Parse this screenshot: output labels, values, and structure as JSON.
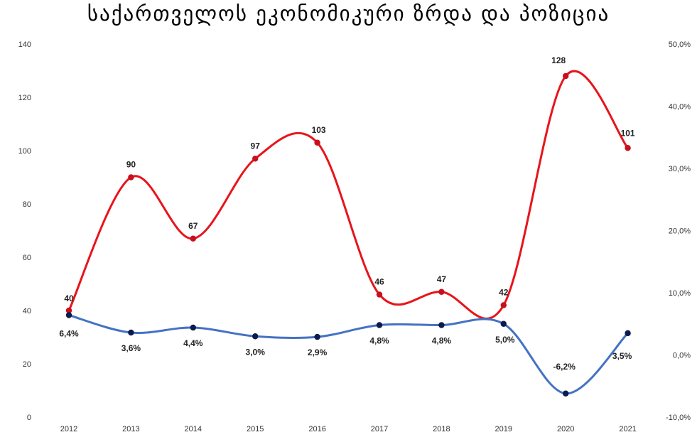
{
  "chart_data": {
    "type": "line",
    "title": "საქართველოს ეკონომიკური ზრდა და პოზიცია",
    "categories": [
      "2012",
      "2013",
      "2014",
      "2015",
      "2016",
      "2017",
      "2018",
      "2019",
      "2020",
      "2021"
    ],
    "y_left": {
      "min": 0,
      "max": 140,
      "ticks": [
        0,
        20,
        40,
        60,
        80,
        100,
        120,
        140
      ],
      "tick_labels": [
        "0",
        "20",
        "40",
        "60",
        "80",
        "100",
        "120",
        "140"
      ]
    },
    "y_right": {
      "min": -10,
      "max": 50,
      "ticks": [
        -10,
        0,
        10,
        20,
        30,
        40,
        50
      ],
      "tick_labels": [
        "-10,0%",
        "0,0%",
        "10,0%",
        "20,0%",
        "30,0%",
        "40,0%",
        "50,0%"
      ]
    },
    "series": [
      {
        "axis": "left",
        "color": "#e8141b",
        "marker_color": "#c8101c",
        "values": [
          40,
          90,
          67,
          97,
          103,
          46,
          47,
          42,
          128,
          101
        ],
        "labels": [
          "40",
          "90",
          "67",
          "97",
          "103",
          "46",
          "47",
          "42",
          "128",
          "101"
        ]
      },
      {
        "axis": "right",
        "color": "#4472c4",
        "marker_color": "#0d1a4d",
        "values": [
          6.4,
          3.6,
          4.4,
          3.0,
          2.9,
          4.8,
          4.8,
          5.0,
          -6.2,
          3.5
        ],
        "labels": [
          "6,4%",
          "3,6%",
          "4,4%",
          "3,0%",
          "2,9%",
          "4,8%",
          "4,8%",
          "5,0%",
          "-6,2%",
          "3,5%"
        ]
      }
    ],
    "grid": false,
    "legend": "none"
  }
}
